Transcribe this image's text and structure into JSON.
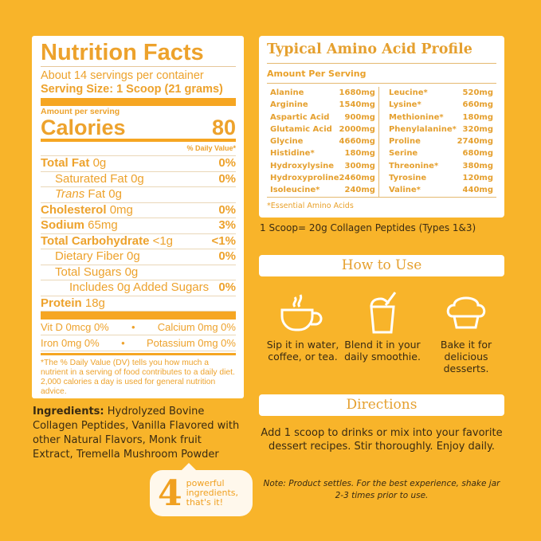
{
  "nutrition": {
    "title": "Nutrition Facts",
    "servings": "About 14 servings per container",
    "serving_size": "Serving Size: 1 Scoop (21 grams)",
    "amount_per_serving": "Amount per serving",
    "calories_label": "Calories",
    "calories": "80",
    "dv_header": "% Daily Value*",
    "rows": [
      {
        "label": "Total Fat",
        "value": "0g",
        "dv": "0%",
        "bold": true,
        "indent": 0
      },
      {
        "label": "Saturated Fat",
        "value": "0g",
        "dv": "0%",
        "bold": false,
        "indent": 1
      },
      {
        "label": "Trans",
        "value": "Fat 0g",
        "dv": "",
        "bold": false,
        "indent": 1,
        "italic": true
      },
      {
        "label": "Cholesterol",
        "value": "0mg",
        "dv": "0%",
        "bold": true,
        "indent": 0
      },
      {
        "label": "Sodium",
        "value": "65mg",
        "dv": "3%",
        "bold": true,
        "indent": 0
      },
      {
        "label": "Total Carbohydrate",
        "value": "<1g",
        "dv": "<1%",
        "bold": true,
        "indent": 0
      },
      {
        "label": "Dietary Fiber",
        "value": "0g",
        "dv": "0%",
        "bold": false,
        "indent": 1
      },
      {
        "label": "Total Sugars",
        "value": "0g",
        "dv": "",
        "bold": false,
        "indent": 1
      },
      {
        "label": "Includes 0g Added Sugars",
        "value": "",
        "dv": "0%",
        "bold": false,
        "indent": 2
      },
      {
        "label": "Protein",
        "value": "18g",
        "dv": "",
        "bold": true,
        "indent": 0
      }
    ],
    "micros": [
      [
        "Vit D 0mcg 0%",
        "•",
        "Calcium 0mg 0%"
      ],
      [
        "Iron 0mg 0%",
        "•",
        "Potassium 0mg 0%"
      ]
    ],
    "footnote": "*The % Daily Value (DV) tells you how much a nutrient in a serving of food contributes to a daily diet. 2,000 calories a day is used for general nutrition advice."
  },
  "ingredients": {
    "label": "Ingredients:",
    "text": " Hydrolyzed Bovine Collagen Peptides, Vanilla Flavored with other Natural Flavors, Monk fruit Extract, Tremella Mushroom Powder"
  },
  "badge": {
    "number": "4",
    "text": "powerful ingredients, that's it!"
  },
  "amino": {
    "title": "Typical Amino Acid Profile",
    "subtitle": "Amount Per Serving",
    "left": [
      [
        "Alanine",
        "1680mg"
      ],
      [
        "Arginine",
        "1540mg"
      ],
      [
        "Aspartic Acid",
        "900mg"
      ],
      [
        "Glutamic Acid",
        "2000mg"
      ],
      [
        "Glycine",
        "4660mg"
      ],
      [
        "Histidine*",
        "180mg"
      ],
      [
        "Hydroxylysine",
        "300mg"
      ],
      [
        "Hydroxyproline",
        "2460mg"
      ],
      [
        "Isoleucine*",
        "240mg"
      ]
    ],
    "right": [
      [
        "Leucine*",
        "520mg"
      ],
      [
        "Lysine*",
        "660mg"
      ],
      [
        "Methionine*",
        "180mg"
      ],
      [
        "Phenylalanine*",
        "320mg"
      ],
      [
        "Proline",
        "2740mg"
      ],
      [
        "Serine",
        "680mg"
      ],
      [
        "Threonine*",
        "380mg"
      ],
      [
        "Tyrosine",
        "120mg"
      ],
      [
        "Valine*",
        "440mg"
      ]
    ],
    "footnote": "*Essential Amino Acids"
  },
  "scoop_note": "1 Scoop= 20g Collagen Peptides (Types 1&3)",
  "how_to_use": {
    "title": "How to Use",
    "items": [
      {
        "icon": "coffee-cup-icon",
        "text": "Sip it in water, coffee, or tea."
      },
      {
        "icon": "smoothie-icon",
        "text": "Blend it in your daily smoothie."
      },
      {
        "icon": "muffin-icon",
        "text": "Bake it for delicious desserts."
      }
    ]
  },
  "directions": {
    "title": "Directions",
    "text": "Add 1 scoop to drinks or mix into your favorite dessert recipes. Stir thoroughly. Enjoy daily.",
    "note": "Note: Product settles. For the best experience, shake jar 2-3 times prior to use."
  },
  "colors": {
    "background": "#F8B42A",
    "accent": "#EDA22C",
    "text_dark": "#3a2b12"
  }
}
